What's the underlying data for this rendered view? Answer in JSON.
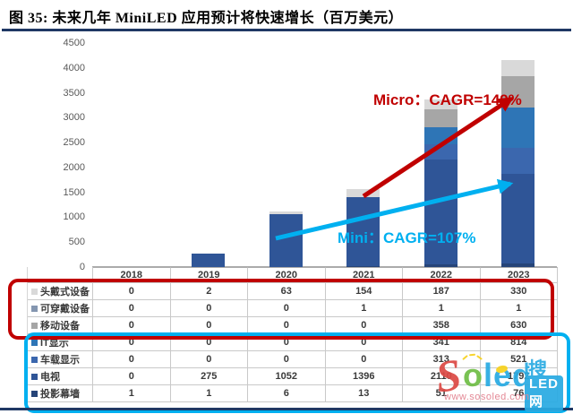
{
  "title": "图 35:  未来几年 MiniLED  应用预计将快速增长（百万美元）",
  "chart_data": {
    "type": "bar",
    "subtype": "stacked-column-with-data-table",
    "title": "未来几年 MiniLED 应用预计将快速增长（百万美元）",
    "categories": [
      "2018",
      "2019",
      "2020",
      "2021",
      "2022",
      "2023"
    ],
    "series": [
      {
        "name": "头戴式设备",
        "color": "#D9D9D9",
        "values": [
          0,
          2,
          63,
          154,
          187,
          330
        ]
      },
      {
        "name": "可穿戴设备",
        "color": "#8496B0",
        "values": [
          0,
          0,
          0,
          1,
          1,
          1
        ]
      },
      {
        "name": "移动设备",
        "color": "#A6A6A6",
        "values": [
          0,
          0,
          0,
          0,
          358,
          630
        ]
      },
      {
        "name": "IT显示",
        "color": "#2E75B6",
        "values": [
          0,
          0,
          0,
          0,
          341,
          814
        ]
      },
      {
        "name": "车载显示",
        "color": "#3B67AE",
        "values": [
          0,
          0,
          0,
          0,
          313,
          521
        ]
      },
      {
        "name": "电视",
        "color": "#2F5597",
        "values": [
          0,
          275,
          1052,
          1396,
          2110,
          1792
        ]
      },
      {
        "name": "投影幕墙",
        "color": "#264478",
        "values": [
          1,
          1,
          6,
          13,
          51,
          76
        ]
      }
    ],
    "stack_order_bottom_to_top": [
      "投影幕墙",
      "电视",
      "车载显示",
      "IT显示",
      "移动设备",
      "可穿戴设备",
      "头戴式设备"
    ],
    "ylim": [
      0,
      4500
    ],
    "y_ticks": [
      0,
      500,
      1000,
      1500,
      2000,
      2500,
      3000,
      3500,
      4000,
      4500
    ],
    "grid": false,
    "legend_position": "data-table-left-column",
    "annotations": [
      {
        "id": "micro",
        "text": "Micro：CAGR=149%",
        "color": "#C00000"
      },
      {
        "id": "mini",
        "text": "Mini：CAGR=107%",
        "color": "#00B0F0"
      }
    ],
    "highlight_boxes": [
      {
        "id": "micro-rows",
        "color": "#C00000",
        "rows": [
          "头戴式设备",
          "可穿戴设备",
          "移动设备"
        ]
      },
      {
        "id": "mini-rows",
        "color": "#00B0F0",
        "rows": [
          "IT显示",
          "车载显示",
          "电视",
          "投影幕墙"
        ]
      }
    ]
  },
  "watermark": {
    "logo_s": "S",
    "logo_o": "o",
    "logo_led": "led",
    "badge_top": "搜搜",
    "badge_bottom": "LED网",
    "url": "www.sosoled.com"
  }
}
